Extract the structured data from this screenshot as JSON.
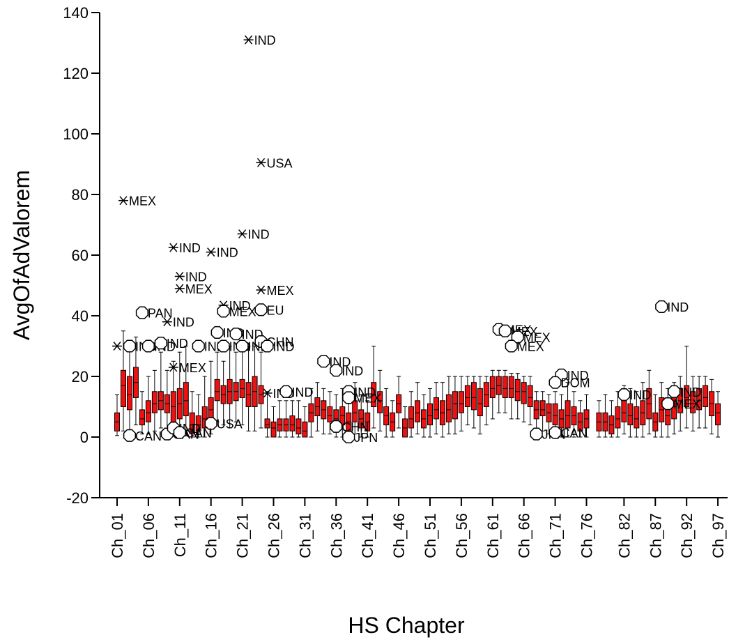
{
  "chart_data": {
    "type": "box",
    "title": "",
    "xlabel": "HS Chapter",
    "ylabel": "AvgOfAdValorem",
    "ylim": [
      -20,
      140
    ],
    "y_ticks": [
      -20,
      0,
      20,
      40,
      60,
      80,
      100,
      120,
      140
    ],
    "x_tick_labels": [
      "Ch_01",
      "Ch_06",
      "Ch_11",
      "Ch_16",
      "Ch_21",
      "Ch_26",
      "Ch_31",
      "Ch_36",
      "Ch_41",
      "Ch_46",
      "Ch_51",
      "Ch_56",
      "Ch_61",
      "Ch_66",
      "Ch_71",
      "Ch_76",
      "Ch_82",
      "Ch_87",
      "Ch_92",
      "Ch_97"
    ],
    "grid": false,
    "legend": "none",
    "box_color": "#ee1111",
    "boxes": [
      {
        "chapter": 1,
        "q1": 2,
        "q3": 8,
        "median": 5,
        "wmin": 0.5,
        "wmax": 14
      },
      {
        "chapter": 2,
        "q1": 10,
        "q3": 22,
        "median": 17,
        "wmin": 2,
        "wmax": 35
      },
      {
        "chapter": 3,
        "q1": 9,
        "q3": 20,
        "median": 14,
        "wmin": 1,
        "wmax": 30
      },
      {
        "chapter": 4,
        "q1": 13,
        "q3": 23,
        "median": 18,
        "wmin": 4,
        "wmax": 33
      },
      {
        "chapter": 5,
        "q1": 4,
        "q3": 9,
        "median": 6,
        "wmin": 1,
        "wmax": 15
      },
      {
        "chapter": 6,
        "q1": 5,
        "q3": 12,
        "median": 8,
        "wmin": 1,
        "wmax": 20
      },
      {
        "chapter": 7,
        "q1": 8,
        "q3": 15,
        "median": 11,
        "wmin": 2,
        "wmax": 22
      },
      {
        "chapter": 8,
        "q1": 9,
        "q3": 15,
        "median": 12,
        "wmin": 3,
        "wmax": 28
      },
      {
        "chapter": 9,
        "q1": 8,
        "q3": 14,
        "median": 11,
        "wmin": 1,
        "wmax": 22
      },
      {
        "chapter": 10,
        "q1": 5,
        "q3": 15,
        "median": 10,
        "wmin": 0.5,
        "wmax": 25
      },
      {
        "chapter": 11,
        "q1": 6,
        "q3": 16,
        "median": 11,
        "wmin": 1,
        "wmax": 28
      },
      {
        "chapter": 12,
        "q1": 7,
        "q3": 18,
        "median": 12,
        "wmin": 1,
        "wmax": 30
      },
      {
        "chapter": 13,
        "q1": 1,
        "q3": 8,
        "median": 4,
        "wmin": 0,
        "wmax": 15
      },
      {
        "chapter": 14,
        "q1": 2,
        "q3": 7,
        "median": 4,
        "wmin": 0,
        "wmax": 14
      },
      {
        "chapter": 15,
        "q1": 3,
        "q3": 10,
        "median": 6,
        "wmin": 0,
        "wmax": 20
      },
      {
        "chapter": 16,
        "q1": 5,
        "q3": 13,
        "median": 9,
        "wmin": 1,
        "wmax": 25
      },
      {
        "chapter": 17,
        "q1": 12,
        "q3": 19,
        "median": 15,
        "wmin": 5,
        "wmax": 28
      },
      {
        "chapter": 18,
        "q1": 11,
        "q3": 17,
        "median": 14,
        "wmin": 4,
        "wmax": 25
      },
      {
        "chapter": 19,
        "q1": 11,
        "q3": 19,
        "median": 15,
        "wmin": 3,
        "wmax": 30
      },
      {
        "chapter": 20,
        "q1": 12,
        "q3": 18,
        "median": 15,
        "wmin": 5,
        "wmax": 28
      },
      {
        "chapter": 21,
        "q1": 13,
        "q3": 19,
        "median": 16,
        "wmin": 4,
        "wmax": 30
      },
      {
        "chapter": 22,
        "q1": 10,
        "q3": 18,
        "median": 14,
        "wmin": 2,
        "wmax": 30
      },
      {
        "chapter": 23,
        "q1": 10,
        "q3": 20,
        "median": 15,
        "wmin": 2,
        "wmax": 30
      },
      {
        "chapter": 24,
        "q1": 11,
        "q3": 17,
        "median": 14,
        "wmin": 3,
        "wmax": 28
      },
      {
        "chapter": 25,
        "q1": 3,
        "q3": 6,
        "median": 4,
        "wmin": 0,
        "wmax": 15
      },
      {
        "chapter": 26,
        "q1": 0,
        "q3": 5,
        "median": 3,
        "wmin": 0,
        "wmax": 10
      },
      {
        "chapter": 27,
        "q1": 2,
        "q3": 6,
        "median": 4,
        "wmin": 0,
        "wmax": 12
      },
      {
        "chapter": 28,
        "q1": 2,
        "q3": 6,
        "median": 4,
        "wmin": 0,
        "wmax": 12
      },
      {
        "chapter": 29,
        "q1": 2,
        "q3": 7,
        "median": 4,
        "wmin": 0,
        "wmax": 12
      },
      {
        "chapter": 30,
        "q1": 1,
        "q3": 6,
        "median": 3,
        "wmin": 0,
        "wmax": 12
      },
      {
        "chapter": 31,
        "q1": 0,
        "q3": 5,
        "median": 2,
        "wmin": 0,
        "wmax": 10
      },
      {
        "chapter": 32,
        "q1": 5,
        "q3": 11,
        "median": 8,
        "wmin": 0,
        "wmax": 16
      },
      {
        "chapter": 33,
        "q1": 7,
        "q3": 13,
        "median": 10,
        "wmin": 2,
        "wmax": 18
      },
      {
        "chapter": 34,
        "q1": 6,
        "q3": 12,
        "median": 9,
        "wmin": 1,
        "wmax": 16
      },
      {
        "chapter": 35,
        "q1": 5,
        "q3": 10,
        "median": 7,
        "wmin": 1,
        "wmax": 15
      },
      {
        "chapter": 36,
        "q1": 3,
        "q3": 9,
        "median": 6,
        "wmin": 0,
        "wmax": 14
      },
      {
        "chapter": 37,
        "q1": 4,
        "q3": 10,
        "median": 7,
        "wmin": 0,
        "wmax": 16
      },
      {
        "chapter": 38,
        "q1": 2,
        "q3": 8,
        "median": 5,
        "wmin": 0,
        "wmax": 14
      },
      {
        "chapter": 39,
        "q1": 5,
        "q3": 12,
        "median": 8,
        "wmin": 1,
        "wmax": 18
      },
      {
        "chapter": 40,
        "q1": 3,
        "q3": 9,
        "median": 6,
        "wmin": 0,
        "wmax": 14
      },
      {
        "chapter": 41,
        "q1": 2,
        "q3": 8,
        "median": 5,
        "wmin": 0,
        "wmax": 12
      },
      {
        "chapter": 42,
        "q1": 10,
        "q3": 18,
        "median": 14,
        "wmin": 3,
        "wmax": 30
      },
      {
        "chapter": 43,
        "q1": 8,
        "q3": 15,
        "median": 12,
        "wmin": 2,
        "wmax": 22
      },
      {
        "chapter": 44,
        "q1": 4,
        "q3": 10,
        "median": 7,
        "wmin": 0,
        "wmax": 16
      },
      {
        "chapter": 45,
        "q1": 2,
        "q3": 8,
        "median": 5,
        "wmin": 0,
        "wmax": 12
      },
      {
        "chapter": 46,
        "q1": 8,
        "q3": 14,
        "median": 11,
        "wmin": 3,
        "wmax": 20
      },
      {
        "chapter": 47,
        "q1": 0,
        "q3": 6,
        "median": 3,
        "wmin": 0,
        "wmax": 10
      },
      {
        "chapter": 48,
        "q1": 3,
        "q3": 10,
        "median": 6,
        "wmin": 0,
        "wmax": 15
      },
      {
        "chapter": 49,
        "q1": 5,
        "q3": 12,
        "median": 8,
        "wmin": 1,
        "wmax": 18
      },
      {
        "chapter": 50,
        "q1": 3,
        "q3": 9,
        "median": 6,
        "wmin": 0,
        "wmax": 14
      },
      {
        "chapter": 51,
        "q1": 4,
        "q3": 11,
        "median": 7,
        "wmin": 0,
        "wmax": 16
      },
      {
        "chapter": 52,
        "q1": 6,
        "q3": 13,
        "median": 9,
        "wmin": 1,
        "wmax": 18
      },
      {
        "chapter": 53,
        "q1": 4,
        "q3": 12,
        "median": 8,
        "wmin": 0,
        "wmax": 18
      },
      {
        "chapter": 54,
        "q1": 5,
        "q3": 14,
        "median": 9,
        "wmin": 1,
        "wmax": 20
      },
      {
        "chapter": 55,
        "q1": 6,
        "q3": 15,
        "median": 11,
        "wmin": 1,
        "wmax": 20
      },
      {
        "chapter": 56,
        "q1": 8,
        "q3": 15,
        "median": 11,
        "wmin": 2,
        "wmax": 20
      },
      {
        "chapter": 57,
        "q1": 10,
        "q3": 17,
        "median": 13,
        "wmin": 4,
        "wmax": 20
      },
      {
        "chapter": 58,
        "q1": 9,
        "q3": 18,
        "median": 13,
        "wmin": 3,
        "wmax": 20
      },
      {
        "chapter": 59,
        "q1": 7,
        "q3": 16,
        "median": 11,
        "wmin": 1,
        "wmax": 20
      },
      {
        "chapter": 60,
        "q1": 10,
        "q3": 18,
        "median": 14,
        "wmin": 4,
        "wmax": 20
      },
      {
        "chapter": 61,
        "q1": 13,
        "q3": 20,
        "median": 16,
        "wmin": 6,
        "wmax": 22
      },
      {
        "chapter": 62,
        "q1": 14,
        "q3": 20,
        "median": 17,
        "wmin": 8,
        "wmax": 22
      },
      {
        "chapter": 63,
        "q1": 13,
        "q3": 20,
        "median": 16,
        "wmin": 8,
        "wmax": 22
      },
      {
        "chapter": 64,
        "q1": 13,
        "q3": 20,
        "median": 16,
        "wmin": 6,
        "wmax": 21
      },
      {
        "chapter": 65,
        "q1": 12,
        "q3": 19,
        "median": 15,
        "wmin": 6,
        "wmax": 21
      },
      {
        "chapter": 66,
        "q1": 11,
        "q3": 18,
        "median": 15,
        "wmin": 5,
        "wmax": 20
      },
      {
        "chapter": 67,
        "q1": 10,
        "q3": 17,
        "median": 13,
        "wmin": 4,
        "wmax": 20
      },
      {
        "chapter": 68,
        "q1": 6,
        "q3": 12,
        "median": 9,
        "wmin": 2,
        "wmax": 15
      },
      {
        "chapter": 69,
        "q1": 7,
        "q3": 12,
        "median": 9,
        "wmin": 2,
        "wmax": 15
      },
      {
        "chapter": 70,
        "q1": 5,
        "q3": 11,
        "median": 8,
        "wmin": 1,
        "wmax": 14
      },
      {
        "chapter": 71,
        "q1": 4,
        "q3": 11,
        "median": 7,
        "wmin": 0,
        "wmax": 15
      },
      {
        "chapter": 72,
        "q1": 3,
        "q3": 9,
        "median": 6,
        "wmin": 0,
        "wmax": 14
      },
      {
        "chapter": 73,
        "q1": 3,
        "q3": 12,
        "median": 7,
        "wmin": 0,
        "wmax": 18
      },
      {
        "chapter": 74,
        "q1": 4,
        "q3": 10,
        "median": 7,
        "wmin": 0,
        "wmax": 15
      },
      {
        "chapter": 75,
        "q1": 2,
        "q3": 8,
        "median": 5,
        "wmin": 0,
        "wmax": 12
      },
      {
        "chapter": 76,
        "q1": 3,
        "q3": 9,
        "median": 6,
        "wmin": 0,
        "wmax": 14
      },
      {
        "chapter": 78,
        "q1": 2,
        "q3": 8,
        "median": 5,
        "wmin": 0,
        "wmax": 12
      },
      {
        "chapter": 79,
        "q1": 2,
        "q3": 8,
        "median": 5,
        "wmin": 0,
        "wmax": 14
      },
      {
        "chapter": 80,
        "q1": 1,
        "q3": 7,
        "median": 4,
        "wmin": 0,
        "wmax": 12
      },
      {
        "chapter": 81,
        "q1": 3,
        "q3": 10,
        "median": 6,
        "wmin": 0,
        "wmax": 15
      },
      {
        "chapter": 82,
        "q1": 5,
        "q3": 12,
        "median": 8,
        "wmin": 1,
        "wmax": 17
      },
      {
        "chapter": 83,
        "q1": 4,
        "q3": 11,
        "median": 7,
        "wmin": 0,
        "wmax": 16
      },
      {
        "chapter": 84,
        "q1": 3,
        "q3": 10,
        "median": 6,
        "wmin": 0,
        "wmax": 15
      },
      {
        "chapter": 85,
        "q1": 4,
        "q3": 12,
        "median": 8,
        "wmin": 0,
        "wmax": 18
      },
      {
        "chapter": 86,
        "q1": 6,
        "q3": 16,
        "median": 11,
        "wmin": 1,
        "wmax": 22
      },
      {
        "chapter": 87,
        "q1": 2,
        "q3": 8,
        "median": 5,
        "wmin": 0,
        "wmax": 14
      },
      {
        "chapter": 88,
        "q1": 5,
        "q3": 13,
        "median": 9,
        "wmin": 0,
        "wmax": 18
      },
      {
        "chapter": 89,
        "q1": 4,
        "q3": 11,
        "median": 7,
        "wmin": 0,
        "wmax": 16
      },
      {
        "chapter": 90,
        "q1": 6,
        "q3": 14,
        "median": 10,
        "wmin": 1,
        "wmax": 18
      },
      {
        "chapter": 91,
        "q1": 8,
        "q3": 16,
        "median": 12,
        "wmin": 2,
        "wmax": 20
      },
      {
        "chapter": 92,
        "q1": 10,
        "q3": 17,
        "median": 13,
        "wmin": 3,
        "wmax": 30
      },
      {
        "chapter": 93,
        "q1": 8,
        "q3": 15,
        "median": 11,
        "wmin": 2,
        "wmax": 20
      },
      {
        "chapter": 94,
        "q1": 9,
        "q3": 16,
        "median": 12,
        "wmin": 3,
        "wmax": 20
      },
      {
        "chapter": 95,
        "q1": 10,
        "q3": 17,
        "median": 13,
        "wmin": 3,
        "wmax": 20
      },
      {
        "chapter": 96,
        "q1": 7,
        "q3": 15,
        "median": 11,
        "wmin": 1,
        "wmax": 19
      },
      {
        "chapter": 97,
        "q1": 4,
        "q3": 11,
        "median": 8,
        "wmin": 0,
        "wmax": 15
      }
    ],
    "outliers": [
      {
        "chapter": 22,
        "value": 131,
        "marker": "star",
        "label": "IND"
      },
      {
        "chapter": 24,
        "value": 90.5,
        "marker": "star",
        "label": "USA"
      },
      {
        "chapter": 2,
        "value": 78,
        "marker": "star",
        "label": "MEX"
      },
      {
        "chapter": 21,
        "value": 67,
        "marker": "star",
        "label": "IND"
      },
      {
        "chapter": 10,
        "value": 62.5,
        "marker": "star",
        "label": "IND"
      },
      {
        "chapter": 16,
        "value": 61,
        "marker": "star",
        "label": "IND"
      },
      {
        "chapter": 11,
        "value": 53,
        "marker": "star",
        "label": "IND"
      },
      {
        "chapter": 11,
        "value": 49,
        "marker": "star",
        "label": "MEX"
      },
      {
        "chapter": 24,
        "value": 48.5,
        "marker": "star",
        "label": "MEX"
      },
      {
        "chapter": 18,
        "value": 43.5,
        "marker": "star",
        "label": "IND"
      },
      {
        "chapter": 9,
        "value": 38,
        "marker": "star",
        "label": "IND"
      },
      {
        "chapter": 1,
        "value": 30,
        "marker": "star",
        "label": ""
      },
      {
        "chapter": 10,
        "value": 23,
        "marker": "star",
        "label": "MEX"
      },
      {
        "chapter": 25,
        "value": 14.5,
        "marker": "star",
        "label": "IND"
      },
      {
        "chapter": 18,
        "value": 41.5,
        "marker": "circle",
        "label": "MEX"
      },
      {
        "chapter": 24,
        "value": 42,
        "marker": "circle",
        "label": "EU"
      },
      {
        "chapter": 5,
        "value": 41,
        "marker": "circle",
        "label": "PAN"
      },
      {
        "chapter": 88,
        "value": 43,
        "marker": "circle",
        "label": "IND"
      },
      {
        "chapter": 62,
        "value": 35.5,
        "marker": "circle",
        "label": "MEX"
      },
      {
        "chapter": 63,
        "value": 35,
        "marker": "circle",
        "label": "MEX"
      },
      {
        "chapter": 65,
        "value": 33,
        "marker": "circle",
        "label": "MEX"
      },
      {
        "chapter": 64,
        "value": 30,
        "marker": "circle",
        "label": "MEX"
      },
      {
        "chapter": 17,
        "value": 34.5,
        "marker": "circle",
        "label": "IND"
      },
      {
        "chapter": 20,
        "value": 34,
        "marker": "circle",
        "label": "IND"
      },
      {
        "chapter": 24,
        "value": 31.5,
        "marker": "circle",
        "label": "CHN"
      },
      {
        "chapter": 3,
        "value": 30,
        "marker": "circle",
        "label": "IND"
      },
      {
        "chapter": 6,
        "value": 30,
        "marker": "circle",
        "label": "IND"
      },
      {
        "chapter": 8,
        "value": 31,
        "marker": "circle",
        "label": "IND"
      },
      {
        "chapter": 14,
        "value": 30,
        "marker": "circle",
        "label": "IND"
      },
      {
        "chapter": 18,
        "value": 30,
        "marker": "circle",
        "label": "IND"
      },
      {
        "chapter": 21,
        "value": 30,
        "marker": "circle",
        "label": "IND"
      },
      {
        "chapter": 25,
        "value": 30,
        "marker": "circle",
        "label": "IND"
      },
      {
        "chapter": 34,
        "value": 25,
        "marker": "circle",
        "label": "IND"
      },
      {
        "chapter": 36,
        "value": 22,
        "marker": "circle",
        "label": "IND"
      },
      {
        "chapter": 72,
        "value": 20.5,
        "marker": "circle",
        "label": "IND"
      },
      {
        "chapter": 71,
        "value": 18,
        "marker": "circle",
        "label": "DOM"
      },
      {
        "chapter": 28,
        "value": 15,
        "marker": "circle",
        "label": "IND"
      },
      {
        "chapter": 38,
        "value": 15,
        "marker": "circle",
        "label": "IND"
      },
      {
        "chapter": 38,
        "value": 13,
        "marker": "circle",
        "label": "MEX"
      },
      {
        "chapter": 82,
        "value": 14,
        "marker": "circle",
        "label": "IND"
      },
      {
        "chapter": 90,
        "value": 15,
        "marker": "circle",
        "label": "IND"
      },
      {
        "chapter": 89,
        "value": 11,
        "marker": "circle",
        "label": "MEX"
      },
      {
        "chapter": 16,
        "value": 4.5,
        "marker": "circle",
        "label": "USA"
      },
      {
        "chapter": 36,
        "value": 3.5,
        "marker": "circle",
        "label": "CHN"
      },
      {
        "chapter": 38,
        "value": 0,
        "marker": "circle",
        "label": "JPN"
      },
      {
        "chapter": 3,
        "value": 0.5,
        "marker": "circle",
        "label": "CAN"
      },
      {
        "chapter": 9,
        "value": 1,
        "marker": "circle",
        "label": "CAN"
      },
      {
        "chapter": 10,
        "value": 3,
        "marker": "circle",
        "label": "IND"
      },
      {
        "chapter": 11,
        "value": 1.5,
        "marker": "circle",
        "label": "CAN"
      },
      {
        "chapter": 68,
        "value": 1,
        "marker": "circle",
        "label": "JPN"
      },
      {
        "chapter": 71,
        "value": 1.5,
        "marker": "circle",
        "label": "CAN"
      }
    ]
  }
}
